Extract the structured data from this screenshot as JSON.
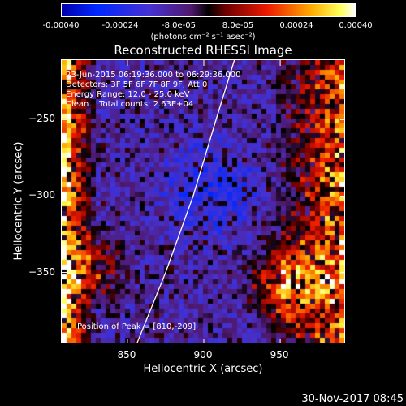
{
  "colorbar": {
    "ticks": [
      "-0.00040",
      "-0.00024",
      "-8.0e-05",
      "8.0e-05",
      "0.00024",
      "0.00040"
    ],
    "units": "(photons cm⁻² s⁻¹ asec⁻²)"
  },
  "chart_data": {
    "type": "heatmap",
    "title": "Reconstructed RHESSI Image",
    "xlabel": "Heliocentric X (arcsec)",
    "ylabel": "Heliocentric Y (arcsec)",
    "xlim": [
      807,
      993
    ],
    "ylim": [
      -397,
      -211
    ],
    "x_ticks": [
      850,
      900,
      950
    ],
    "y_ticks": [
      -250,
      -300,
      -350
    ],
    "x_tick_labels": [
      "850",
      "900",
      "950"
    ],
    "y_tick_labels": [
      "−250",
      "−300",
      "−350"
    ],
    "colorbar_range": [
      -0.0004,
      0.0004
    ],
    "colormap": "blue-purple-red-yellow-white",
    "limb": [
      [
        856,
        -397
      ],
      [
        875,
        -350
      ],
      [
        893,
        -300
      ],
      [
        908,
        -250
      ],
      [
        920,
        -211
      ]
    ],
    "peak": [
      810,
      -209
    ],
    "annotations": {
      "time": "23-Jun-2015 06:19:36.000 to 06:29:36.000",
      "detectors": "Detectors: 3F 5F 6F 7F 8F 9F, Att 0",
      "energy": "Energy Range: 12.0 - 25.0 keV",
      "method": "Clean    Total counts: 2.63E+04",
      "peak_text": "Position of Peak = [810,-209]"
    }
  },
  "timestamp": "30-Nov-2017 08:45"
}
